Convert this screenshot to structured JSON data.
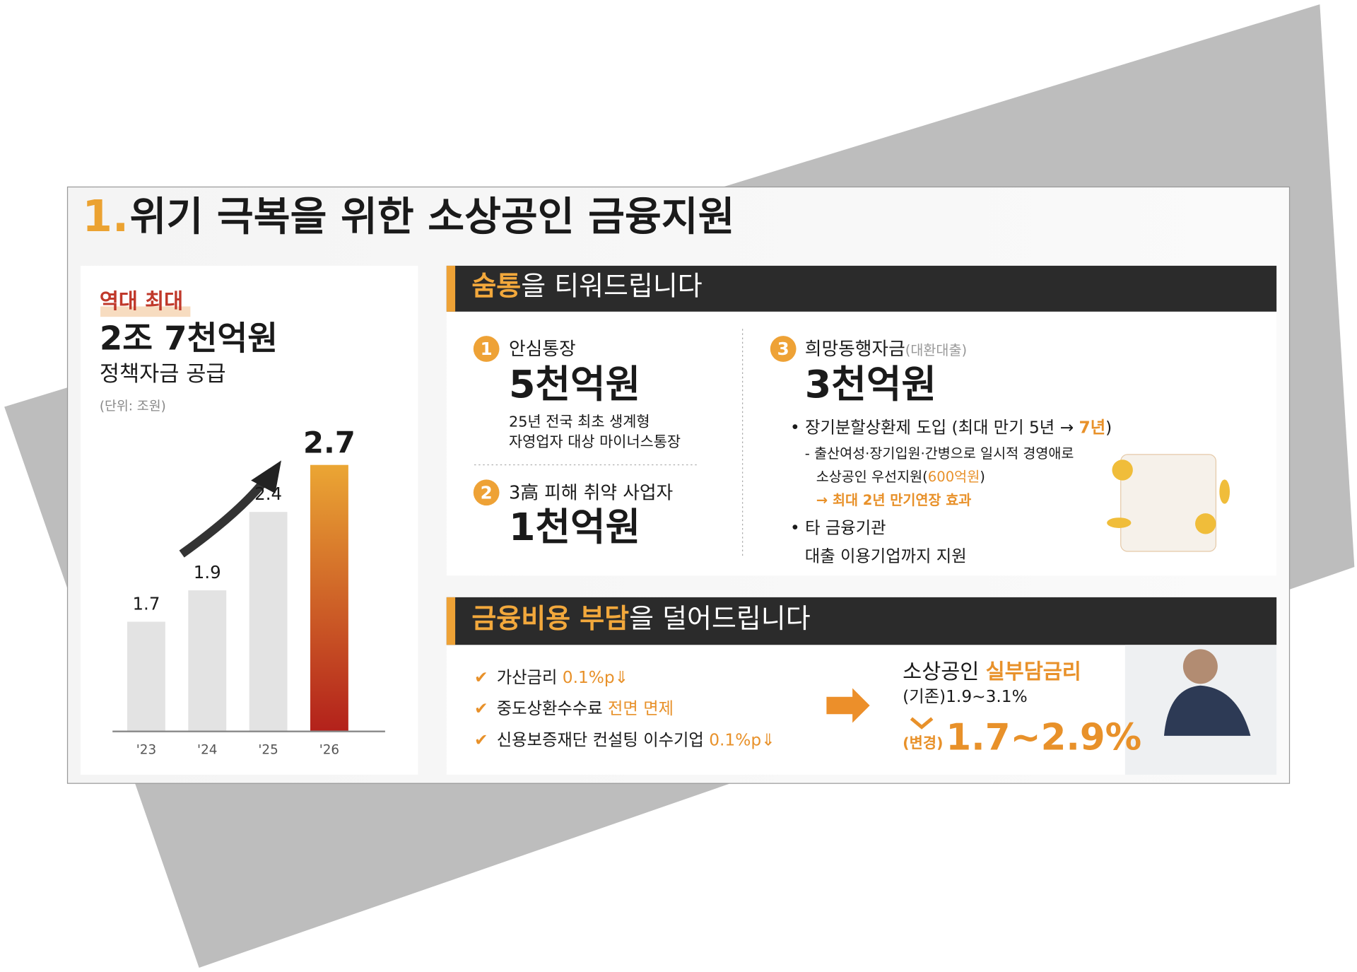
{
  "header": {
    "number": "1.",
    "title": "위기 극복을 위한 소상공인 금융지원"
  },
  "summary": {
    "badge": "역대 최대",
    "amount": "2조 7천억원",
    "subtitle": "정책자금 공급",
    "unit": "(단위: 조원)"
  },
  "chart_data": {
    "type": "bar",
    "categories": [
      "'23",
      "'24",
      "'25",
      "'26"
    ],
    "values": [
      1.7,
      1.9,
      2.4,
      2.7
    ],
    "colors": [
      [
        "#e3e3e3",
        "#e3e3e3"
      ],
      [
        "#e3e3e3",
        "#e3e3e3"
      ],
      [
        "#e3e3e3",
        "#e3e3e3"
      ],
      [
        "#eba634",
        "#b3211b"
      ]
    ],
    "ylim": [
      1,
      2.8
    ]
  },
  "section1": {
    "title_highlight": "숨통",
    "title_rest": "을 티워드립니다",
    "item1": {
      "number": "1",
      "label": "안심통장",
      "amount": "5천억원",
      "desc": [
        "25년 전국 최초 생계형",
        "자영업자 대상 마이너스통장"
      ]
    },
    "item2": {
      "number": "2",
      "label": "3高 피해 취약 사업자",
      "amount": "1천억원"
    },
    "item3": {
      "number": "3",
      "label": "희망동행자금",
      "label_note": "(대환대출)",
      "amount": "3천억원",
      "bullet1": {
        "text": "장기분할상환제 도입 (최대 만기 5년 →",
        "highlight": "7년",
        "end": ")"
      },
      "sub1": "- 출산여성·장기입원·간병으로 일시적 경영애로",
      "sub2": "소상공인 우선지원(",
      "sub2_highlight": "600억원",
      "sub2_end": ")",
      "sub3": "→ 최대 2년 만기연장 효과",
      "bullet2": [
        "타 금융기관",
        "대출 이용기업까지 지원"
      ]
    }
  },
  "section2": {
    "title_highlight": "금융비용 부담",
    "title_rest": "을 덜어드립니다",
    "checks": [
      {
        "text": "가산금리 ",
        "highlight": "0.1%p⇓"
      },
      {
        "text": "중도상환수수료 ",
        "highlight": "전면 면제"
      },
      {
        "text": "신용보증재단 컨설팅 이수기업 ",
        "highlight": "0.1%p⇓"
      }
    ],
    "rate_title": "소상공인 ",
    "rate_title_highlight": "실부담금리",
    "rate_before": "(기존)1.9~3.1%",
    "rate_change_label": "(변경)",
    "rate_after": "1.7~2.9%"
  }
}
